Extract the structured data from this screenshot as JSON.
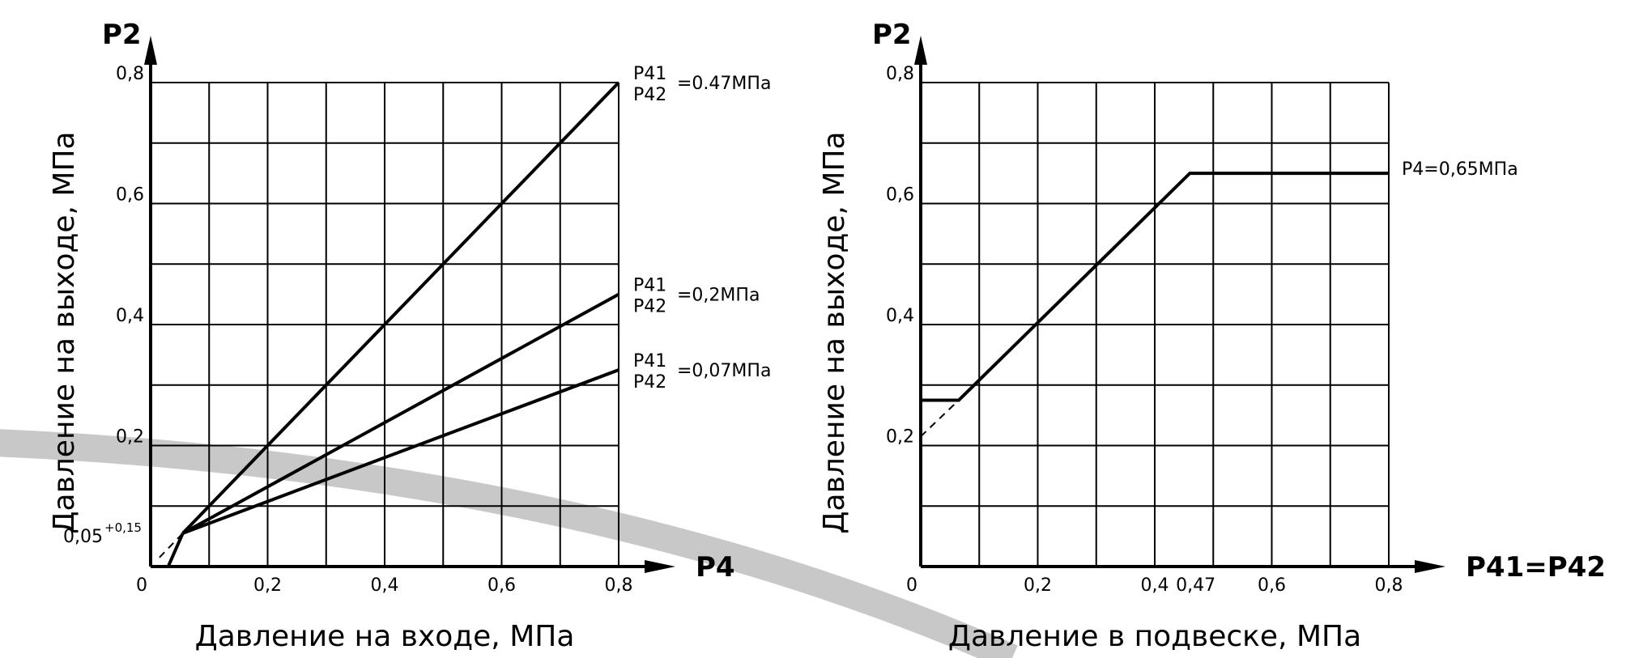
{
  "background_arc_color": "#c8c8c8",
  "chart_data": [
    {
      "type": "line",
      "xlabel": "Давление на входе, МПа",
      "ylabel": "Давление на выходе, МПа",
      "x_axis_name": "P4",
      "y_axis_name": "P2",
      "xlim": [
        0,
        0.8
      ],
      "ylim": [
        0,
        0.8
      ],
      "grid": true,
      "x_ticks": [
        "0",
        "0,2",
        "0,4",
        "0,6",
        "0,8"
      ],
      "y_ticks": [
        "0,2",
        "0,4",
        "0,6",
        "0,8"
      ],
      "start_label": "0,05",
      "start_label_sup": "+0,15",
      "series": [
        {
          "name": "P41 P42 =0.47МПа",
          "label_top": "P41",
          "label_bottom": "P42",
          "label_value": "=0.47МПа",
          "x": [
            0.055,
            0.8
          ],
          "y": [
            0.055,
            0.8
          ]
        },
        {
          "name": "P41 P42 =0,2МПа",
          "label_top": "P41",
          "label_bottom": "P42",
          "label_value": "=0,2МПа",
          "x": [
            0.055,
            0.8
          ],
          "y": [
            0.055,
            0.45
          ]
        },
        {
          "name": "P41 P42 =0,07МПа",
          "label_top": "P41",
          "label_bottom": "P42",
          "label_value": "=0,07МПа",
          "x": [
            0.055,
            0.8
          ],
          "y": [
            0.055,
            0.325
          ]
        }
      ],
      "dashed": {
        "x": [
          0.015,
          0.055
        ],
        "y": [
          0.015,
          0.055
        ]
      },
      "extra_segment": {
        "x": [
          0.03,
          0.055
        ],
        "y": [
          0,
          0.055
        ]
      }
    },
    {
      "type": "line",
      "xlabel": "Давление в подвеске, МПа",
      "ylabel": "Давление на выходе, МПа",
      "x_axis_name": "P41=P42",
      "y_axis_name": "P2",
      "xlim": [
        0,
        0.8
      ],
      "ylim": [
        0,
        0.8
      ],
      "grid": true,
      "x_ticks": [
        "0",
        "0,2",
        "0,4",
        "0,47",
        "0,6",
        "0,8"
      ],
      "x_tick_values": [
        0,
        0.2,
        0.4,
        0.47,
        0.6,
        0.8
      ],
      "y_ticks": [
        "0,2",
        "0,4",
        "0,6",
        "0,8"
      ],
      "series": [
        {
          "name": "P4=0,65МПа",
          "label_value": "P4=0,65МПа",
          "x": [
            0,
            0.065,
            0.46,
            0.8
          ],
          "y": [
            0.275,
            0.275,
            0.65,
            0.65
          ]
        }
      ],
      "dashed": {
        "x": [
          0,
          0.065
        ],
        "y": [
          0.215,
          0.275
        ]
      }
    }
  ]
}
